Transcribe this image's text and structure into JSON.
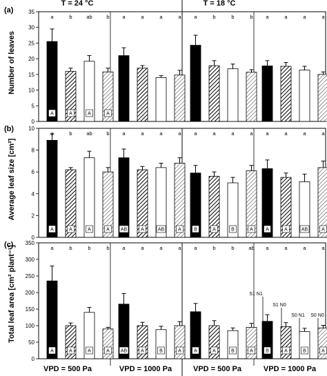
{
  "figure": {
    "column_groups": [
      "T = 24 °C",
      "T = 18 °C"
    ],
    "vpd_labels": [
      "VPD = 500 Pa",
      "VPD = 1000 Pa",
      "VPD = 500 Pa",
      "VPD = 1000 Pa"
    ],
    "treatments": [
      "S1 N1",
      "S1 N0",
      "S0 N1",
      "S0 N0"
    ],
    "colors": {
      "bar_solid": "#000000",
      "bar_open": "#ffffff",
      "stroke": "#000000"
    }
  },
  "chart_data": [
    {
      "type": "bar",
      "panel": "(a)",
      "ylabel": "Number of leaves",
      "ylim": [
        0,
        35
      ],
      "yticks": [
        0,
        5,
        10,
        15,
        20,
        25,
        30,
        35
      ],
      "values": [
        25.5,
        16.0,
        19.2,
        15.8,
        21.0,
        17.0,
        14.0,
        14.8,
        24.3,
        17.8,
        16.8,
        15.7,
        17.7,
        17.6,
        16.4,
        15.0
      ],
      "errors": [
        4.0,
        1.0,
        1.8,
        1.2,
        2.5,
        0.8,
        0.6,
        1.5,
        3.2,
        1.6,
        1.5,
        0.8,
        1.7,
        1.2,
        1.2,
        0.8
      ],
      "letters_top": [
        "a",
        "b",
        "ab",
        "b",
        "a",
        "a",
        "a",
        "a",
        "a",
        "b",
        "b",
        "b",
        "a",
        "a",
        "a",
        "a"
      ],
      "letters_in_bar": [
        "A",
        "A",
        "A",
        "A",
        "",
        "",
        "",
        "",
        "",
        "",
        "",
        "",
        "",
        "",
        "",
        ""
      ]
    },
    {
      "type": "bar",
      "panel": "(b)",
      "ylabel": "Average leaf size [cm²]",
      "ylim": [
        0,
        10
      ],
      "yticks": [
        0,
        2,
        4,
        6,
        8,
        10
      ],
      "values": [
        8.9,
        6.2,
        7.3,
        6.0,
        7.3,
        6.2,
        6.4,
        6.8,
        5.9,
        5.6,
        5.0,
        6.1,
        6.3,
        5.5,
        5.1,
        6.4
      ],
      "errors": [
        0.6,
        0.2,
        0.6,
        0.4,
        0.8,
        0.3,
        0.4,
        0.5,
        0.7,
        0.4,
        0.5,
        0.5,
        0.8,
        0.4,
        0.7,
        0.6
      ],
      "letters_top": [
        "a",
        "b",
        "ab",
        "b",
        "a",
        "a",
        "a",
        "a",
        "a",
        "a",
        "a",
        "a",
        "a",
        "a",
        "a",
        "a"
      ],
      "letters_in_bar": [
        "A",
        "A",
        "A",
        "A",
        "AB",
        "A",
        "AB",
        "A",
        "B",
        "A",
        "B",
        "A",
        "A",
        "A",
        "AB",
        "A"
      ]
    },
    {
      "type": "bar",
      "panel": "(c)",
      "ylabel": "Total leaf area [cm² plant⁻¹]",
      "ylim": [
        0,
        350
      ],
      "yticks": [
        0,
        50,
        100,
        150,
        200,
        250,
        300,
        350
      ],
      "values": [
        235,
        100,
        140,
        90,
        165,
        100,
        88,
        100,
        142,
        100,
        85,
        95,
        113,
        97,
        82,
        93
      ],
      "errors": [
        45,
        8,
        15,
        5,
        32,
        10,
        10,
        12,
        25,
        15,
        8,
        12,
        20,
        12,
        10,
        8
      ],
      "letters_top": [
        "a",
        "b",
        "b",
        "b",
        "a",
        "a",
        "a",
        "a",
        "a",
        "b",
        "b",
        "ab",
        "a",
        "a",
        "a",
        "a"
      ],
      "letters_in_bar": [
        "A",
        "A",
        "A",
        "A",
        "AB",
        "A",
        "B",
        "A",
        "A",
        "A",
        "B",
        "A",
        "B",
        "A",
        "B",
        "A"
      ]
    }
  ]
}
